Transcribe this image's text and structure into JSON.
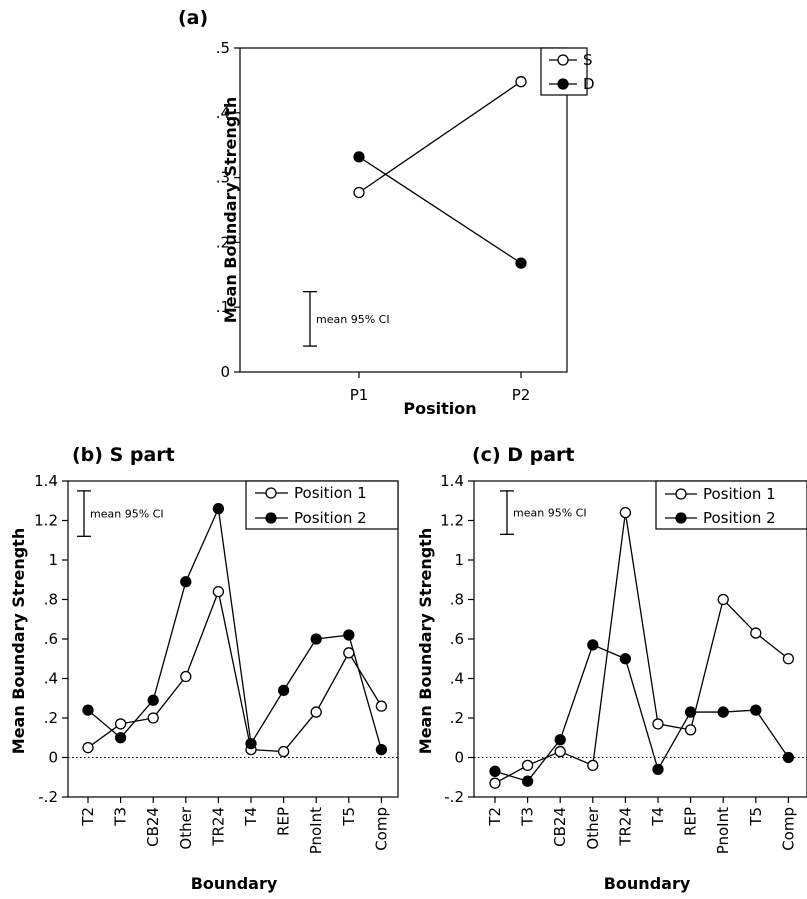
{
  "chart_data": [
    {
      "panel": "(a)",
      "type": "line",
      "title": "",
      "xlabel": "Position",
      "ylabel": "Mean Boundary Strength",
      "categories": [
        "P1",
        "P2"
      ],
      "ylim": [
        0,
        0.5
      ],
      "yticks": [
        {
          "value": 0,
          "label": "0"
        },
        {
          "value": 0.1,
          "label": ".1"
        },
        {
          "value": 0.2,
          "label": ".2"
        },
        {
          "value": 0.3,
          "label": ".3"
        },
        {
          "value": 0.4,
          "label": ".4"
        },
        {
          "value": 0.5,
          "label": ".5"
        }
      ],
      "series": [
        {
          "name": "S",
          "marker": "open",
          "values": [
            0.277,
            0.448
          ]
        },
        {
          "name": "D",
          "marker": "filled",
          "values": [
            0.332,
            0.168
          ]
        }
      ],
      "ci": {
        "label": "mean 95% CI",
        "low": 0.04,
        "high": 0.124
      },
      "zero_line": false,
      "legend_position": "top-right"
    },
    {
      "panel": "(b) S part",
      "type": "line",
      "title": "",
      "xlabel": "Boundary",
      "ylabel": "Mean Boundary Strength",
      "categories": [
        "T2",
        "T3",
        "CB24",
        "Other",
        "TR24",
        "T4",
        "REP",
        "PnoInt",
        "T5",
        "Comp"
      ],
      "ylim": [
        -0.2,
        1.4
      ],
      "yticks": [
        {
          "value": -0.2,
          "label": "-.2"
        },
        {
          "value": 0,
          "label": "0"
        },
        {
          "value": 0.2,
          "label": ".2"
        },
        {
          "value": 0.4,
          "label": ".4"
        },
        {
          "value": 0.6,
          "label": ".6"
        },
        {
          "value": 0.8,
          "label": ".8"
        },
        {
          "value": 1.0,
          "label": "1"
        },
        {
          "value": 1.2,
          "label": "1.2"
        },
        {
          "value": 1.4,
          "label": "1.4"
        }
      ],
      "series": [
        {
          "name": "Position 1",
          "marker": "open",
          "values": [
            0.05,
            0.17,
            0.2,
            0.41,
            0.84,
            0.04,
            0.03,
            0.23,
            0.53,
            0.26
          ]
        },
        {
          "name": "Position 2",
          "marker": "filled",
          "values": [
            0.24,
            0.1,
            0.29,
            0.89,
            1.26,
            0.07,
            0.34,
            0.6,
            0.62,
            0.04
          ]
        }
      ],
      "ci": {
        "label": "mean 95% CI",
        "low": 1.12,
        "high": 1.35
      },
      "zero_line": true,
      "legend_position": "top-right"
    },
    {
      "panel": "(c) D part",
      "type": "line",
      "title": "",
      "xlabel": "Boundary",
      "ylabel": "Mean Boundary Strength",
      "categories": [
        "T2",
        "T3",
        "CB24",
        "Other",
        "TR24",
        "T4",
        "REP",
        "PnoInt",
        "T5",
        "Comp"
      ],
      "ylim": [
        -0.2,
        1.4
      ],
      "yticks": [
        {
          "value": -0.2,
          "label": "-.2"
        },
        {
          "value": 0,
          "label": "0"
        },
        {
          "value": 0.2,
          "label": ".2"
        },
        {
          "value": 0.4,
          "label": ".4"
        },
        {
          "value": 0.6,
          "label": ".6"
        },
        {
          "value": 0.8,
          "label": ".8"
        },
        {
          "value": 1.0,
          "label": "1"
        },
        {
          "value": 1.2,
          "label": "1.2"
        },
        {
          "value": 1.4,
          "label": "1.4"
        }
      ],
      "series": [
        {
          "name": "Position 1",
          "marker": "open",
          "values": [
            -0.13,
            -0.04,
            0.03,
            -0.04,
            1.24,
            0.17,
            0.14,
            0.8,
            0.63,
            0.5
          ]
        },
        {
          "name": "Position 2",
          "marker": "filled",
          "values": [
            -0.07,
            -0.12,
            0.09,
            0.57,
            0.5,
            -0.06,
            0.23,
            0.23,
            0.24,
            0.0
          ]
        }
      ],
      "ci": {
        "label": "mean 95% CI",
        "low": 1.13,
        "high": 1.35
      },
      "zero_line": true,
      "legend_position": "top-right"
    }
  ]
}
